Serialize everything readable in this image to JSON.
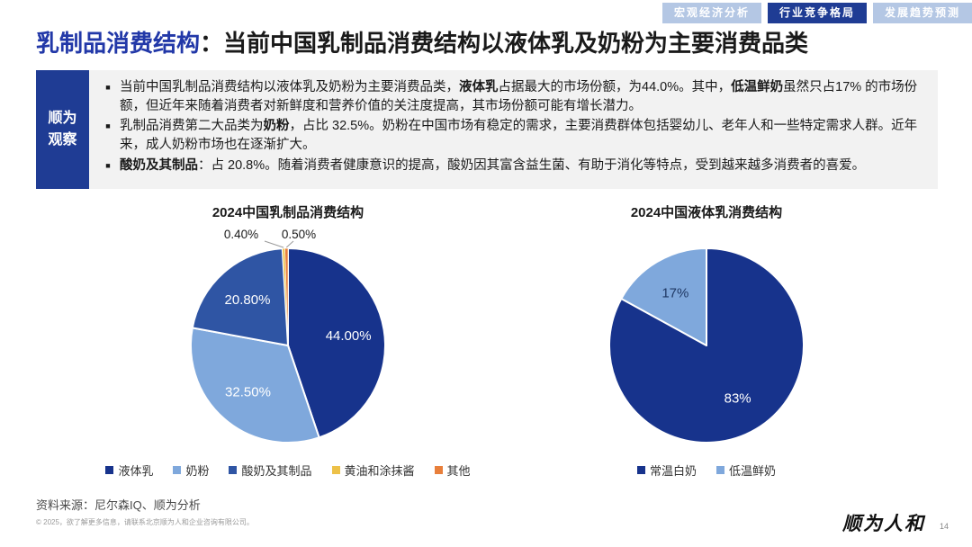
{
  "tabs": [
    {
      "label": "宏观经济分析",
      "active": false
    },
    {
      "label": "行业竞争格局",
      "active": true
    },
    {
      "label": "发展趋势预测",
      "active": false
    }
  ],
  "title": {
    "prefix": "乳制品消费结构",
    "rest": "：当前中国乳制品消费结构以液体乳及奶粉为主要消费品类"
  },
  "observe": {
    "sidebar_line1": "顺为",
    "sidebar_line2": "观察",
    "bullets": [
      {
        "segments": [
          {
            "text": "当前中国乳制品消费结构以液体乳及奶粉为主要消费品类，",
            "bold": false
          },
          {
            "text": "液体乳",
            "bold": true
          },
          {
            "text": "占据最大的市场份额，为44.0%。其中，",
            "bold": false
          },
          {
            "text": "低温鲜奶",
            "bold": true
          },
          {
            "text": "虽然只占17% 的市场份额，但近年来随着消费者对新鲜度和营养价值的关注度提高，其市场份额可能有增长潜力。",
            "bold": false
          }
        ]
      },
      {
        "segments": [
          {
            "text": "乳制品消费第二大品类为",
            "bold": false
          },
          {
            "text": "奶粉",
            "bold": true
          },
          {
            "text": "，占比 32.5%。奶粉在中国市场有稳定的需求，主要消费群体包括婴幼儿、老年人和一些特定需求人群。近年来，成人奶粉市场也在逐渐扩大。",
            "bold": false
          }
        ]
      },
      {
        "segments": [
          {
            "text": "酸奶及其制品",
            "bold": true
          },
          {
            "text": "：占 20.8%。随着消费者健康意识的提高，酸奶因其富含益生菌、有助于消化等特点，受到越来越多消费者的喜爱。",
            "bold": false
          }
        ]
      }
    ]
  },
  "chart_data": [
    {
      "type": "pie",
      "title": "2024中国乳制品消费结构",
      "legend_position": "bottom",
      "slices": [
        {
          "label": "液体乳",
          "value": 44.0,
          "display": "44.00%",
          "color": "#17338c",
          "label_color": "#ffffff",
          "outside": false
        },
        {
          "label": "奶粉",
          "value": 32.5,
          "display": "32.50%",
          "color": "#7fa8dc",
          "label_color": "#ffffff",
          "outside": false
        },
        {
          "label": "酸奶及其制品",
          "value": 20.8,
          "display": "20.80%",
          "color": "#2f55a4",
          "label_color": "#ffffff",
          "outside": false
        },
        {
          "label": "黄油和涂抹酱",
          "value": 0.4,
          "display": "0.40%",
          "color": "#edc148",
          "label_color": "#1a1a1a",
          "outside": true
        },
        {
          "label": "其他",
          "value": 0.5,
          "display": "0.50%",
          "color": "#e87f3b",
          "label_color": "#1a1a1a",
          "outside": true
        }
      ]
    },
    {
      "type": "pie",
      "title": "2024中国液体乳消费结构",
      "legend_position": "bottom",
      "slices": [
        {
          "label": "常温白奶",
          "value": 83,
          "display": "83%",
          "color": "#17338c",
          "label_color": "#ffffff",
          "outside": false
        },
        {
          "label": "低温鲜奶",
          "value": 17,
          "display": "17%",
          "color": "#7fa8dc",
          "label_color": "#1f3864",
          "outside": false
        }
      ]
    }
  ],
  "footer": {
    "source": "资料来源：尼尔森IQ、顺为分析",
    "copyright": "© 2025，欲了解更多信息，请联系北京顺为人和企业咨询有限公司。",
    "logo": "顺为人和",
    "page_number": "14"
  },
  "colors": {
    "accent_navy": "#1f3c94",
    "tab_inactive": "#b4c7e4",
    "title_blue": "#2238a8",
    "observe_bg": "#f2f2f2"
  }
}
